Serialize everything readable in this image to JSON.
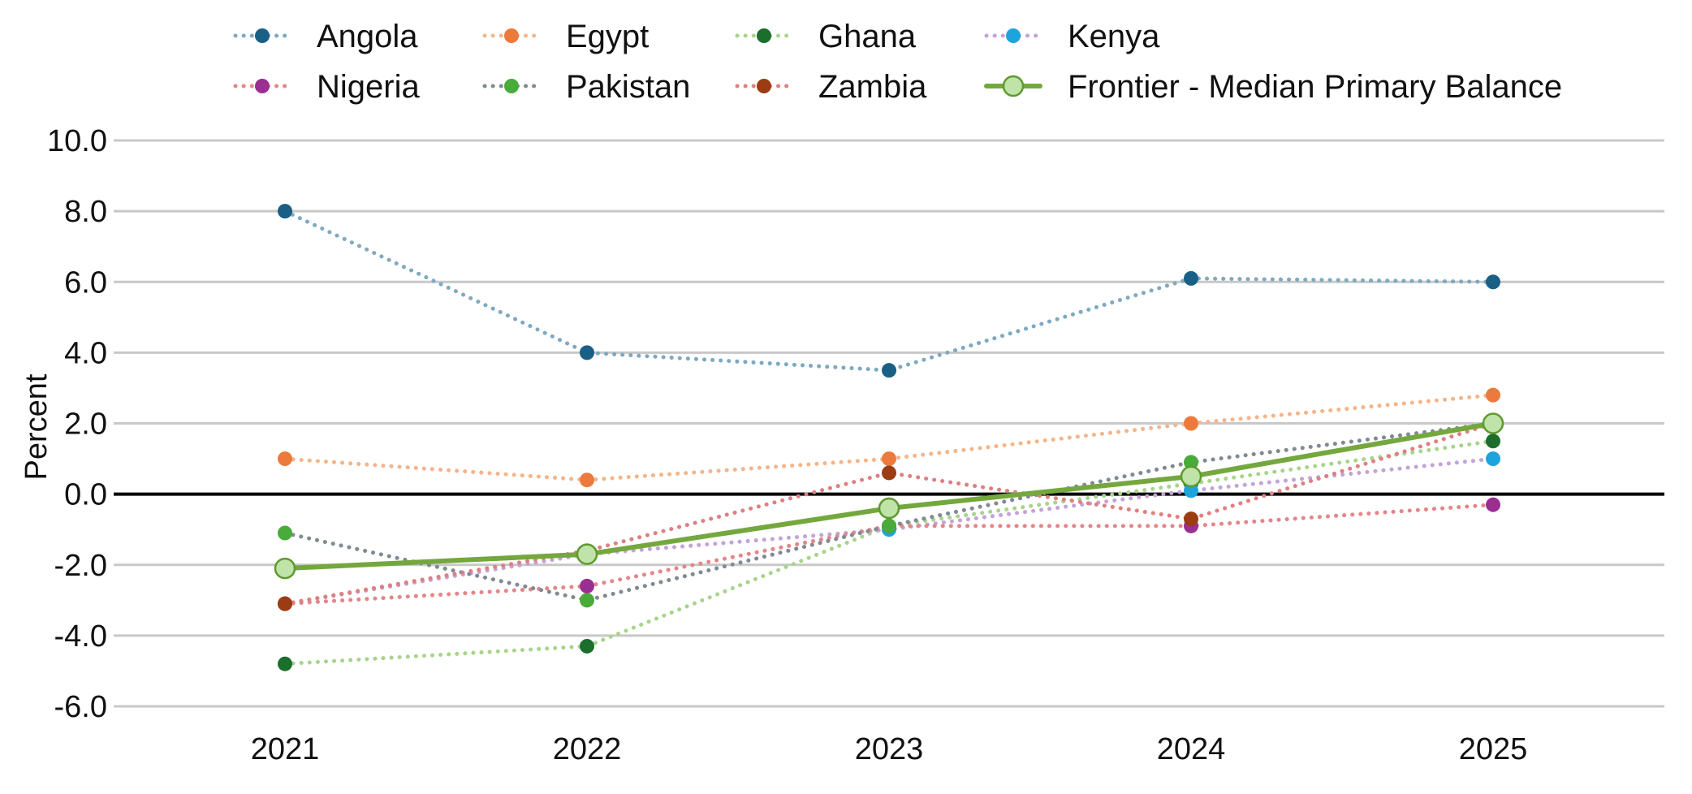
{
  "chart_data": {
    "type": "line",
    "title": "",
    "xlabel": "",
    "ylabel": "Percent",
    "categories": [
      "2021",
      "2022",
      "2023",
      "2024",
      "2025"
    ],
    "ylim": [
      -6.0,
      10.0
    ],
    "yticks": [
      "10.0",
      "8.0",
      "6.0",
      "4.0",
      "2.0",
      "0.0",
      "-2.0",
      "-4.0",
      "-6.0"
    ],
    "ytick_values": [
      10,
      8,
      6,
      4,
      2,
      0,
      -2,
      -4,
      -6
    ],
    "grid": true,
    "legend_position": "top",
    "series": [
      {
        "name": "Angola",
        "line_color": "#7fa9bf",
        "marker_color": "#1a5f85",
        "style": "dotted",
        "values": [
          8.0,
          4.0,
          3.5,
          6.1,
          6.0
        ]
      },
      {
        "name": "Egypt",
        "line_color": "#f4b58a",
        "marker_color": "#ec7a3c",
        "style": "dotted",
        "values": [
          1.0,
          0.4,
          1.0,
          2.0,
          2.8
        ]
      },
      {
        "name": "Ghana",
        "line_color": "#a8d48c",
        "marker_color": "#1b6e2c",
        "style": "dotted",
        "values": [
          -4.8,
          -4.3,
          -0.9,
          0.3,
          1.5
        ]
      },
      {
        "name": "Kenya",
        "line_color": "#c3a3d8",
        "marker_color": "#1ea4dd",
        "style": "dotted",
        "values": [
          -3.1,
          -1.7,
          -1.0,
          0.1,
          1.0
        ]
      },
      {
        "name": "Nigeria",
        "line_color": "#e3868a",
        "marker_color": "#9b2e91",
        "style": "dotted",
        "values": [
          -3.1,
          -2.6,
          -0.9,
          -0.9,
          -0.3
        ]
      },
      {
        "name": "Pakistan",
        "line_color": "#7f8a94",
        "marker_color": "#49ab3a",
        "style": "dotted",
        "values": [
          -1.1,
          -3.0,
          -0.9,
          0.9,
          2.0
        ]
      },
      {
        "name": "Zambia",
        "line_color": "#e07f80",
        "marker_color": "#9c3c12",
        "style": "dotted",
        "values": [
          -3.1,
          -1.6,
          0.6,
          -0.7,
          2.0
        ]
      },
      {
        "name": "Frontier - Median Primary Balance",
        "line_color": "#74a83e",
        "marker_color": "#bfe3a8",
        "style": "solid",
        "values": [
          -2.1,
          -1.7,
          -0.4,
          0.5,
          2.0
        ]
      }
    ],
    "zero_line": 0.0
  }
}
